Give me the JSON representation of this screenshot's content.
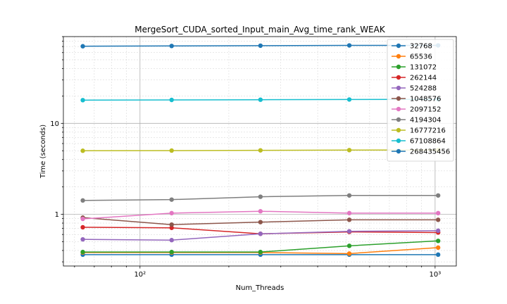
{
  "chart_data": {
    "type": "line",
    "title": "MergeSort_CUDA_sorted_Input_main_Avg_time_rank_WEAK",
    "xlabel": "Num_Threads",
    "ylabel": "Time (seconds)",
    "x_scale": "log",
    "y_scale": "log",
    "xlim": [
      55,
      1180
    ],
    "ylim": [
      0.27,
      90
    ],
    "x_ticks": [
      {
        "value": 100,
        "label": "10²"
      },
      {
        "value": 1000,
        "label": "10³"
      }
    ],
    "y_ticks": [
      {
        "value": 1,
        "label": "1"
      },
      {
        "value": 10,
        "label": "10"
      }
    ],
    "grid": true,
    "legend_position": "upper-right",
    "x": [
      64,
      128,
      256,
      512,
      1024
    ],
    "series": [
      {
        "name": "32768",
        "color": "#1f77b4",
        "values": [
          0.36,
          0.36,
          0.36,
          0.36,
          0.36
        ]
      },
      {
        "name": "65536",
        "color": "#ff7f0e",
        "values": [
          0.38,
          0.38,
          0.38,
          0.37,
          0.43
        ]
      },
      {
        "name": "131072",
        "color": "#2ca02c",
        "values": [
          0.385,
          0.385,
          0.385,
          0.45,
          0.51
        ]
      },
      {
        "name": "262144",
        "color": "#d62728",
        "values": [
          0.72,
          0.71,
          0.61,
          0.64,
          0.63
        ]
      },
      {
        "name": "524288",
        "color": "#9467bd",
        "values": [
          0.53,
          0.52,
          0.61,
          0.65,
          0.66
        ]
      },
      {
        "name": "1048576",
        "color": "#8c564b",
        "values": [
          0.92,
          0.77,
          0.82,
          0.87,
          0.87
        ]
      },
      {
        "name": "2097152",
        "color": "#e377c2",
        "values": [
          0.89,
          1.03,
          1.08,
          1.03,
          1.03
        ]
      },
      {
        "name": "4194304",
        "color": "#7f7f7f",
        "values": [
          1.42,
          1.45,
          1.56,
          1.61,
          1.61
        ]
      },
      {
        "name": "16777216",
        "color": "#bcbd22",
        "values": [
          5.0,
          5.02,
          5.05,
          5.08,
          5.1
        ]
      },
      {
        "name": "67108864",
        "color": "#17becf",
        "values": [
          18.0,
          18.1,
          18.2,
          18.3,
          18.4
        ]
      },
      {
        "name": "268435456",
        "color": "#1f77b4",
        "values": [
          70.5,
          71.0,
          71.5,
          72.0,
          72.0
        ]
      }
    ]
  }
}
